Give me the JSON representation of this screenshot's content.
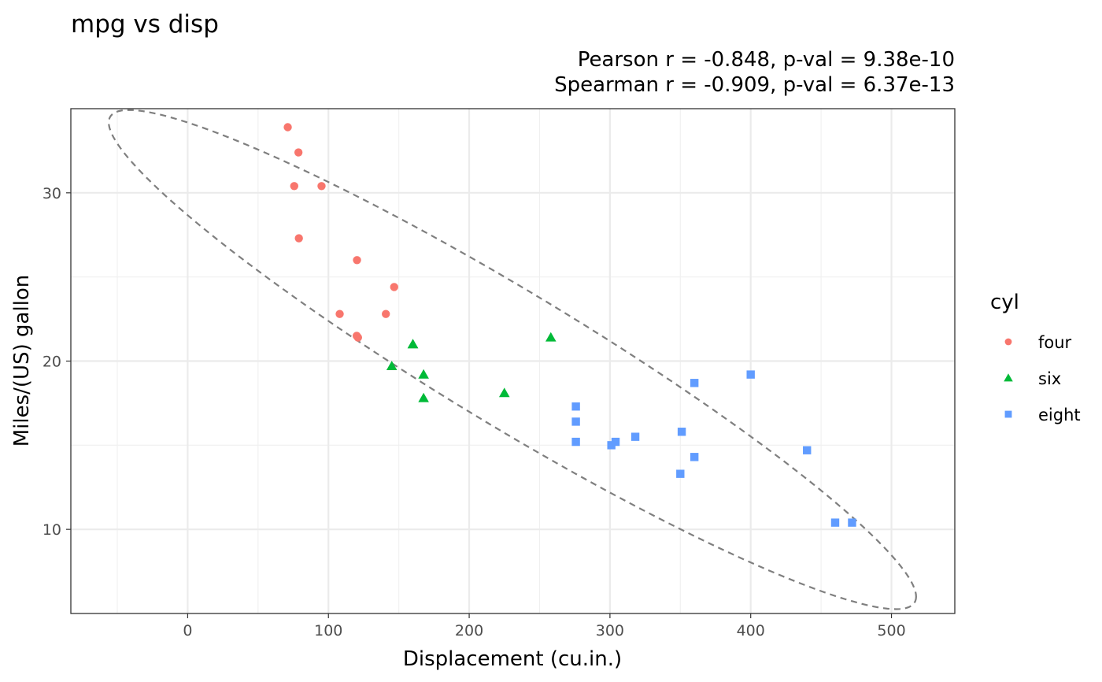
{
  "chart_data": {
    "type": "scatter",
    "title": "mpg vs disp",
    "subtitle_lines": [
      "Pearson r = -0.848, p-val = 9.38e-10",
      "Spearman r = -0.909, p-val = 6.37e-13"
    ],
    "xlabel": "Displacement (cu.in.)",
    "ylabel": "Miles/(US) gallon",
    "xlim": [
      -83,
      545
    ],
    "ylim": [
      5,
      35
    ],
    "x_ticks": [
      0,
      100,
      200,
      300,
      400,
      500
    ],
    "y_ticks": [
      10,
      20,
      30
    ],
    "grid": true,
    "legend": {
      "title": "cyl",
      "position": "right",
      "entries": [
        "four",
        "six",
        "eight"
      ]
    },
    "series": [
      {
        "name": "four",
        "color": "#F8766D",
        "shape": "circle",
        "points": [
          [
            108,
            22.8
          ],
          [
            146.7,
            24.4
          ],
          [
            140.8,
            22.8
          ],
          [
            78.7,
            32.4
          ],
          [
            75.7,
            30.4
          ],
          [
            71.1,
            33.9
          ],
          [
            120.1,
            21.5
          ],
          [
            79,
            27.3
          ],
          [
            120.3,
            26.0
          ],
          [
            95.1,
            30.4
          ],
          [
            121,
            21.4
          ]
        ]
      },
      {
        "name": "six",
        "color": "#00BA38",
        "shape": "triangle",
        "points": [
          [
            160,
            21.0
          ],
          [
            160,
            21.0
          ],
          [
            258,
            21.4
          ],
          [
            225,
            18.1
          ],
          [
            167.6,
            19.2
          ],
          [
            167.6,
            17.8
          ],
          [
            145,
            19.7
          ]
        ]
      },
      {
        "name": "eight",
        "color": "#619CFF",
        "shape": "square",
        "points": [
          [
            360,
            18.7
          ],
          [
            360,
            14.3
          ],
          [
            275.8,
            16.4
          ],
          [
            275.8,
            17.3
          ],
          [
            275.8,
            15.2
          ],
          [
            472,
            10.4
          ],
          [
            460,
            10.4
          ],
          [
            440,
            14.7
          ],
          [
            318,
            15.5
          ],
          [
            304,
            15.2
          ],
          [
            350,
            13.3
          ],
          [
            400,
            19.2
          ],
          [
            351,
            15.8
          ],
          [
            301,
            15.0
          ]
        ]
      }
    ],
    "ellipse": {
      "style": "dashed",
      "color": "#7f7f7f",
      "center": [
        230.72,
        20.09
      ],
      "semi_major_axis": [
        286.8,
        -14.1
      ],
      "semi_minor_axis": [
        -0.78,
        -4.6
      ]
    }
  }
}
